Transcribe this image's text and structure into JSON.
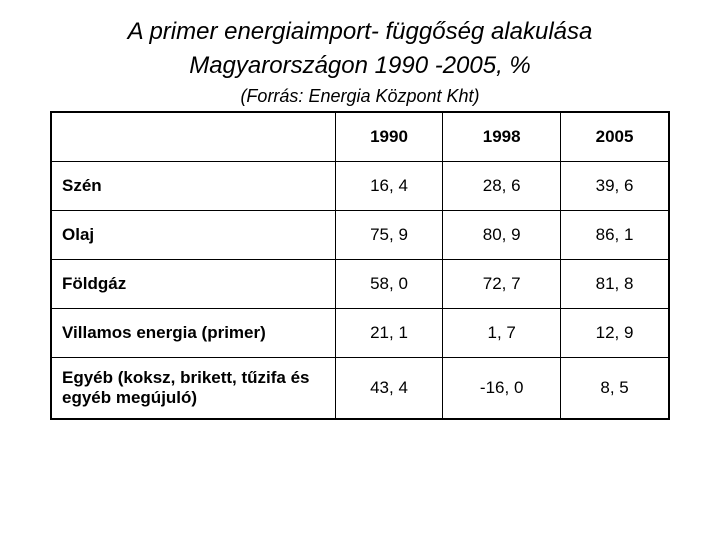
{
  "title": {
    "line1": "A primer energiaimport- függőség alakulása",
    "line2": "Magyarországon  1990 -2005, %"
  },
  "source": "(Forrás: Energia Központ Kht)",
  "table": {
    "type": "table",
    "columns": [
      "",
      "1990",
      "1998",
      "2005"
    ],
    "column_widths_pct": [
      46,
      18,
      18,
      18
    ],
    "header_fontsize": 17,
    "cell_fontsize": 17,
    "border_color": "#000000",
    "background_color": "#ffffff",
    "text_color": "#000000",
    "rows": [
      {
        "label": "Szén",
        "values": [
          "16, 4",
          "28, 6",
          "39, 6"
        ]
      },
      {
        "label": "Olaj",
        "values": [
          "75, 9",
          "80, 9",
          "86, 1"
        ]
      },
      {
        "label": "Földgáz",
        "values": [
          "58, 0",
          "72, 7",
          "81, 8"
        ]
      },
      {
        "label": "Villamos energia (primer)",
        "values": [
          "21, 1",
          "1, 7",
          "12, 9"
        ]
      },
      {
        "label": "Egyéb (koksz, brikett, tűzifa és egyéb megújuló)",
        "values": [
          "43, 4",
          "-16, 0",
          "8, 5"
        ]
      }
    ]
  },
  "typography": {
    "title_fontsize": 24,
    "title_style": "italic",
    "source_fontsize": 18,
    "source_style": "italic",
    "font_family": "Arial"
  }
}
